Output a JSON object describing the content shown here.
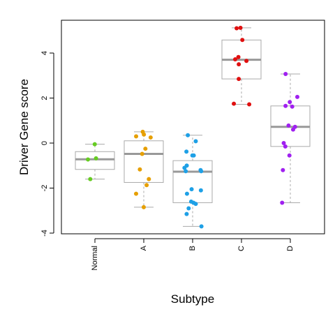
{
  "chart_data": {
    "type": "box",
    "xlabel": "Subtype",
    "ylabel": "Driver Gene score",
    "ylim": [
      -4,
      5.4
    ],
    "yticks": [
      -4,
      -2,
      0,
      2,
      4
    ],
    "grid": false,
    "categories": [
      "Normal",
      "A",
      "B",
      "C",
      "D"
    ],
    "boxes": [
      {
        "name": "Normal",
        "color": "#66cc22",
        "min": -1.6,
        "q1": -1.17,
        "median": -0.72,
        "q3": -0.38,
        "max": -0.05,
        "points": [
          -0.05,
          -0.68,
          -0.73,
          -1.6
        ]
      },
      {
        "name": "A",
        "color": "#e69f00",
        "min": -2.85,
        "q1": -1.75,
        "median": -0.48,
        "q3": 0.1,
        "max": 0.5,
        "points": [
          0.5,
          0.38,
          0.3,
          0.25,
          -0.25,
          -0.48,
          -1.17,
          -1.6,
          -1.87,
          -2.25,
          -2.85
        ]
      },
      {
        "name": "B",
        "color": "#1ea0e6",
        "min": -3.7,
        "q1": -2.65,
        "median": -1.27,
        "q3": -0.78,
        "max": 0.35,
        "points": [
          0.35,
          0.08,
          -0.38,
          -0.55,
          -0.55,
          -1.0,
          -1.1,
          -1.2,
          -1.25,
          -1.25,
          -2.05,
          -2.1,
          -2.25,
          -2.6,
          -2.65,
          -2.7,
          -2.9,
          -3.15,
          -3.7
        ]
      },
      {
        "name": "C",
        "color": "#e01010",
        "min": 1.72,
        "q1": 2.85,
        "median": 3.7,
        "q3": 4.58,
        "max": 5.12,
        "points": [
          5.12,
          5.1,
          4.58,
          3.82,
          3.72,
          3.65,
          3.5,
          2.85,
          1.75,
          1.72
        ]
      },
      {
        "name": "D",
        "color": "#a020f0",
        "min": -2.65,
        "q1": -0.15,
        "median": 0.72,
        "q3": 1.65,
        "max": 3.07,
        "points": [
          3.07,
          2.05,
          1.82,
          1.65,
          1.62,
          0.78,
          0.72,
          0.6,
          0.0,
          -0.15,
          -0.55,
          -1.2,
          -2.65
        ]
      }
    ]
  }
}
